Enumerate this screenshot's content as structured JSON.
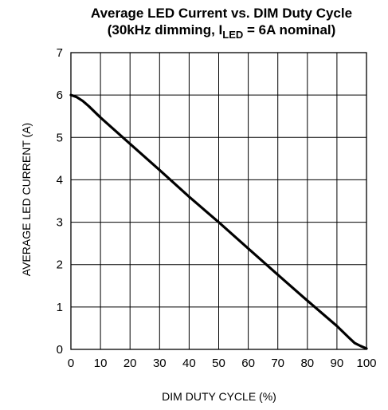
{
  "chart_data": {
    "type": "line",
    "title_line1": "Average LED Current vs. DIM Duty Cycle",
    "title_line2_prefix": "(30kHz dimming, I",
    "title_line2_sub": "LED",
    "title_line2_suffix": " = 6A nominal)",
    "xlabel": "DIM DUTY CYCLE (%)",
    "ylabel": "AVERAGE LED CURRENT (A)",
    "xlim": [
      0,
      100
    ],
    "ylim": [
      0,
      7
    ],
    "xticks": [
      "0",
      "10",
      "20",
      "30",
      "40",
      "50",
      "60",
      "70",
      "80",
      "90",
      "100"
    ],
    "yticks": [
      "0",
      "1",
      "2",
      "3",
      "4",
      "5",
      "6",
      "7"
    ],
    "grid": true,
    "series": [
      {
        "x": [
          0,
          2,
          4,
          6,
          10,
          20,
          30,
          40,
          50,
          60,
          70,
          80,
          90,
          94,
          96,
          98,
          100
        ],
        "y": [
          6.0,
          5.95,
          5.86,
          5.74,
          5.47,
          4.85,
          4.23,
          3.6,
          3.0,
          2.38,
          1.76,
          1.15,
          0.55,
          0.28,
          0.15,
          0.08,
          0.02
        ]
      }
    ]
  }
}
